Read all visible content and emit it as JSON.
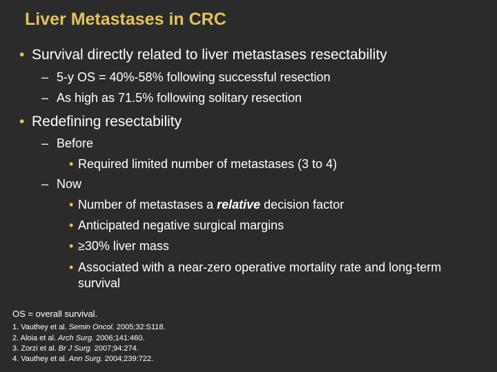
{
  "slide": {
    "title": "Liver Metastases in CRC",
    "bullets": [
      {
        "text": "Survival directly related to liver metastases resectability",
        "subitems": [
          "5-y OS = 40%-58% following successful resection",
          "As high as 71.5% following solitary resection"
        ]
      },
      {
        "text": "Redefining resectability",
        "before": {
          "label": "Before",
          "items": [
            "Required limited number of metastases (3 to 4)"
          ]
        },
        "now": {
          "label": "Now",
          "item1_prefix": "Number of metastases a ",
          "item1_emph": "relative",
          "item1_suffix": " decision factor",
          "item2": "Anticipated negative surgical margins",
          "item3": "≥30% liver mass",
          "item4": "Associated with a near-zero operative mortality rate and long-term survival"
        }
      }
    ],
    "footnote": "OS = overall survival.",
    "references": [
      {
        "prefix": "1. Vauthey et al. ",
        "journal": "Semin Oncol.",
        "suffix": " 2005;32:S118."
      },
      {
        "prefix": "2. Aloia et al. ",
        "journal": "Arch Surg.",
        "suffix": " 2006;141:460."
      },
      {
        "prefix": "3. Zorzi et al. ",
        "journal": "Br J Surg.",
        "suffix": " 2007;94:274."
      },
      {
        "prefix": "4. Vauthey et al. ",
        "journal": "Ann Surg.",
        "suffix": " 2004;239:722."
      }
    ],
    "colors": {
      "background": "#2b2b2b",
      "title": "#e3c35a",
      "bullet": "#e3c35a",
      "text": "#ffffff"
    }
  }
}
